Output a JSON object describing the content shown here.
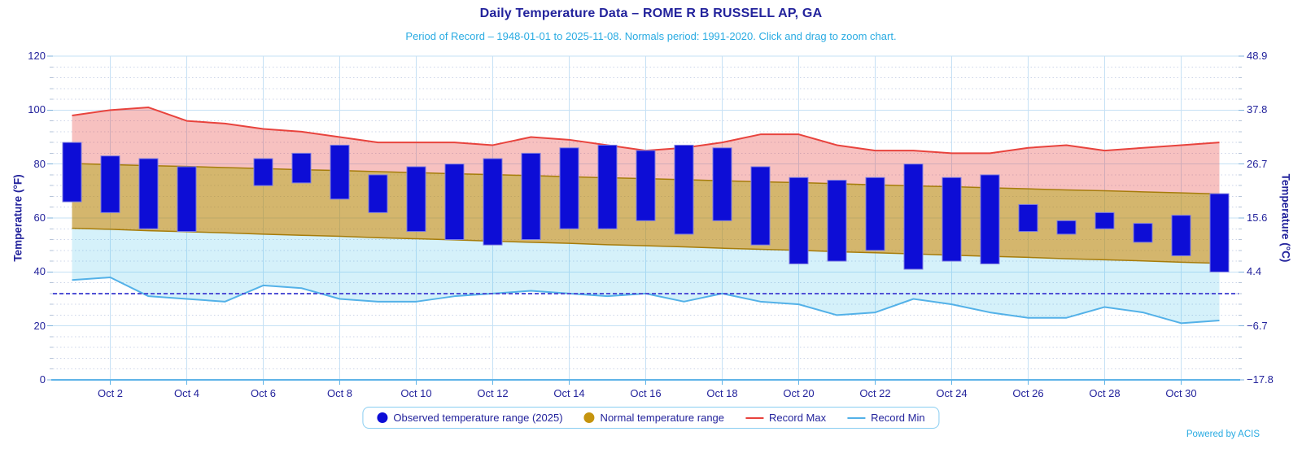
{
  "header": {
    "title": "Daily Temperature Data – ROME R B RUSSELL AP, GA",
    "subtitle": "Period of Record – 1948-01-01 to 2025-11-08. Normals period: 1991-2020. Click and drag to zoom chart."
  },
  "axes": {
    "left_label": "Temperature (°F)",
    "right_label": "Temperature (°C)",
    "left_ticks": [
      "0",
      "20",
      "40",
      "60",
      "80",
      "100",
      "120"
    ],
    "right_ticks": [
      "−17.8",
      "−6.7",
      "4.4",
      "15.6",
      "26.7",
      "37.8",
      "48.9"
    ],
    "x_ticks": [
      "Oct 2",
      "Oct 4",
      "Oct 6",
      "Oct 8",
      "Oct 10",
      "Oct 12",
      "Oct 14",
      "Oct 16",
      "Oct 18",
      "Oct 20",
      "Oct 22",
      "Oct 24",
      "Oct 26",
      "Oct 28",
      "Oct 30"
    ]
  },
  "legend": {
    "items": [
      {
        "label": "Observed temperature range (2025)",
        "swatch": "circle",
        "color": "#0d0dd6"
      },
      {
        "label": "Normal temperature range",
        "swatch": "circle",
        "color": "#c5940e"
      },
      {
        "label": "Record Max",
        "swatch": "line",
        "color": "#e8433d"
      },
      {
        "label": "Record Min",
        "swatch": "line",
        "color": "#53b1e8"
      }
    ]
  },
  "footer": {
    "credit": "Powered by ACIS"
  },
  "colors": {
    "navy_text": "#23239c",
    "lightblue_text": "#29abe2",
    "observed": "#0d0dd6",
    "observed_border": "#8080e0",
    "normal_fill": "rgba(184,134,11,0.60)",
    "normal_edge": "#a67c0a",
    "record_max_line": "#e8433d",
    "record_max_fill": "rgba(231,63,60,0.32)",
    "record_min_line": "#53b1e8",
    "record_min_fill": "rgba(64,190,230,0.22)",
    "freezing_line": "#5151d6",
    "grid_major": "#c6e1f5",
    "grid_minor": "#ccd4e8",
    "axis_line": "#5fb4e8",
    "tick_major": "#7fb3dc",
    "tick_minor": "#b6c4d8"
  },
  "chart_data": {
    "type": "combo: columnrange bars + arearange band + record max/min lines",
    "title": "Daily Temperature Data – ROME R B RUSSELL AP, GA",
    "x_unit": "Day of October 2025",
    "days": [
      "Oct 1",
      "Oct 2",
      "Oct 3",
      "Oct 4",
      "Oct 5",
      "Oct 6",
      "Oct 7",
      "Oct 8",
      "Oct 9",
      "Oct 10",
      "Oct 11",
      "Oct 12",
      "Oct 13",
      "Oct 14",
      "Oct 15",
      "Oct 16",
      "Oct 17",
      "Oct 18",
      "Oct 19",
      "Oct 20",
      "Oct 21",
      "Oct 22",
      "Oct 23",
      "Oct 24",
      "Oct 25",
      "Oct 26",
      "Oct 27",
      "Oct 28",
      "Oct 29",
      "Oct 30",
      "Oct 31"
    ],
    "y_axis_f": {
      "label": "Temperature (°F)",
      "min": 0,
      "max": 120,
      "major_step": 20,
      "minor_step": 4
    },
    "y_axis_c": {
      "label": "Temperature (°C)",
      "tick_labels_bottom_to_top": [
        "−17.8",
        "−6.7",
        "4.4",
        "15.6",
        "26.7",
        "37.8",
        "48.9"
      ]
    },
    "freezing_line_f": 32,
    "grid": "major light-blue solid, minor dotted; vertical gridlines on even days",
    "legend_position": "bottom center",
    "series": [
      {
        "name": "Observed temperature range (2025)",
        "type": "columnrange",
        "note": "null = missing day (Oct 5)",
        "low": [
          66,
          62,
          56,
          55,
          null,
          72,
          73,
          67,
          62,
          55,
          52,
          50,
          52,
          56,
          56,
          59,
          54,
          59,
          50,
          43,
          44,
          48,
          41,
          44,
          43,
          55,
          54,
          56,
          51,
          46,
          40
        ],
        "high": [
          88,
          83,
          82,
          79,
          null,
          82,
          84,
          87,
          76,
          79,
          80,
          82,
          84,
          86,
          87,
          85,
          87,
          86,
          79,
          75,
          74,
          75,
          80,
          75,
          76,
          65,
          59,
          62,
          58,
          61,
          69
        ]
      },
      {
        "name": "Normal temperature range",
        "type": "arearange",
        "low": [
          56.2,
          55.8,
          55.3,
          54.9,
          54.5,
          54.0,
          53.6,
          53.2,
          52.7,
          52.3,
          51.9,
          51.4,
          51.0,
          50.6,
          50.1,
          49.7,
          49.3,
          48.8,
          48.4,
          48.0,
          47.5,
          47.1,
          46.7,
          46.2,
          45.8,
          45.4,
          44.9,
          44.5,
          44.1,
          43.6,
          43.2
        ],
        "high": [
          80.2,
          79.8,
          79.4,
          79.1,
          78.7,
          78.3,
          77.9,
          77.6,
          77.2,
          76.8,
          76.4,
          76.1,
          75.7,
          75.3,
          74.9,
          74.6,
          74.2,
          73.8,
          73.4,
          73.1,
          72.7,
          72.3,
          71.9,
          71.6,
          71.2,
          70.8,
          70.4,
          70.1,
          69.7,
          69.3,
          68.9
        ]
      },
      {
        "name": "Record Max",
        "type": "line (area filled down to normal high)",
        "values": [
          98,
          100,
          101,
          96,
          95,
          93,
          92,
          90,
          88,
          88,
          88,
          87,
          90,
          89,
          87,
          85,
          86,
          88,
          91,
          91,
          87,
          85,
          85,
          84,
          84,
          86,
          87,
          85,
          86,
          87,
          88
        ]
      },
      {
        "name": "Record Min",
        "type": "line (area filled up to normal low)",
        "values": [
          37,
          38,
          31,
          30,
          29,
          35,
          34,
          30,
          29,
          29,
          31,
          32,
          33,
          32,
          31,
          32,
          29,
          32,
          29,
          28,
          24,
          25,
          30,
          28,
          25,
          23,
          23,
          27,
          25,
          21,
          22
        ]
      }
    ]
  }
}
